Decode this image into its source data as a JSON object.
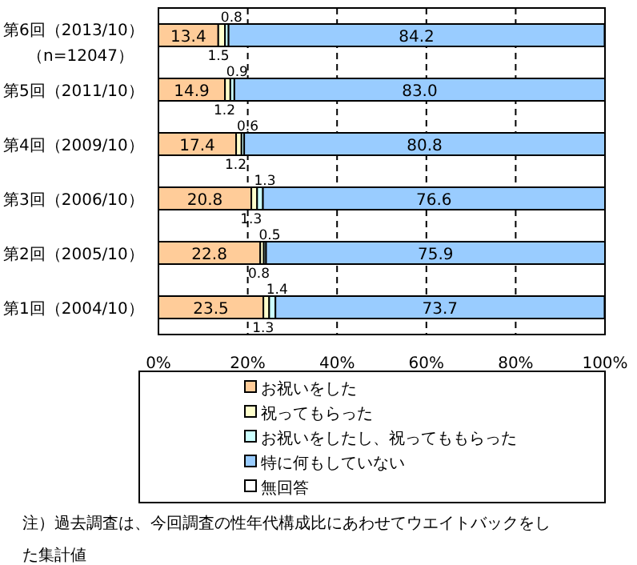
{
  "chart_data": {
    "type": "bar",
    "orientation": "horizontal",
    "stacked": true,
    "categories": [
      "第6回（2013/10）（n=12047）",
      "第5回（2011/10）",
      "第4回（2009/10）",
      "第3回（2006/10）",
      "第2回（2005/10）",
      "第1回（2004/10）"
    ],
    "series": [
      {
        "name": "お祝いをした",
        "color": "#ffcc99",
        "values": [
          13.4,
          14.9,
          17.4,
          20.8,
          22.8,
          23.5
        ],
        "value_labels": [
          "13.4",
          "14.9",
          "17.4",
          "20.8",
          "22.8",
          "23.5"
        ]
      },
      {
        "name": "祝ってもらった",
        "color": "#ffffcc",
        "values": [
          1.5,
          1.2,
          1.2,
          1.3,
          0.8,
          1.3
        ],
        "value_labels": [
          "1.5",
          "1.2",
          "1.2",
          "1.3",
          "0.8",
          "1.3"
        ]
      },
      {
        "name": "お祝いをしたし、祝ってももらった",
        "color": "#ccffff",
        "values": [
          0.8,
          0.9,
          0.6,
          1.3,
          0.5,
          1.4
        ],
        "value_labels": [
          "0.8",
          "0.9",
          "0.6",
          "1.3",
          "0.5",
          "1.4"
        ]
      },
      {
        "name": "特に何もしていない",
        "color": "#99ccff",
        "values": [
          84.2,
          83.0,
          80.8,
          76.6,
          75.9,
          73.7
        ],
        "value_labels": [
          "84.2",
          "83.0",
          "80.8",
          "76.6",
          "75.9",
          "73.7"
        ]
      },
      {
        "name": "無回答",
        "color": "#ffffff",
        "values": [
          null,
          null,
          null,
          null,
          null,
          null
        ]
      }
    ],
    "xlim": [
      0,
      100
    ],
    "xticks": [
      {
        "value": 0,
        "label": "0%"
      },
      {
        "value": 20,
        "label": "20%"
      },
      {
        "value": 40,
        "label": "40%"
      },
      {
        "value": 60,
        "label": "60%"
      },
      {
        "value": 80,
        "label": "80%"
      },
      {
        "value": 100,
        "label": "100%"
      }
    ],
    "grid": "x",
    "legend": "bottom",
    "annotations": [
      "注）過去調査は、今回調査の性年代構成比にあわせてウエイトバックをした集計値"
    ]
  }
}
